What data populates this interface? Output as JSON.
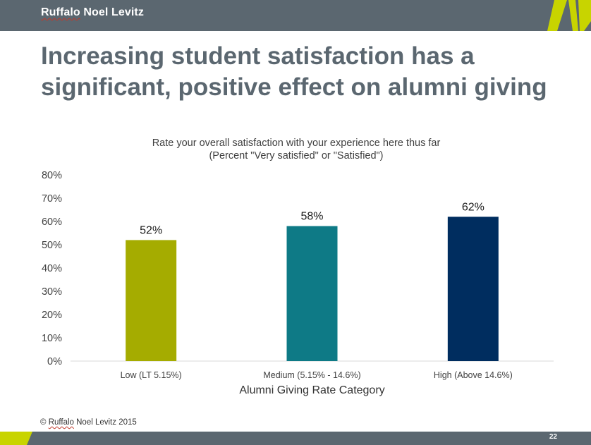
{
  "header": {
    "brand_first": "Ruffalo",
    "brand_rest": " Noel Levitz"
  },
  "slide": {
    "title": "Increasing student satisfaction has a significant, positive effect on alumni giving"
  },
  "chart_data": {
    "type": "bar",
    "title_line1": "Rate your overall satisfaction with your experience here thus far",
    "title_line2": "(Percent \"Very satisfied\" or \"Satisfied\")",
    "xlabel": "Alumni Giving Rate Category",
    "ylabel": "",
    "categories": [
      "Low (LT 5.15%)",
      "Medium (5.15% - 14.6%)",
      "High (Above 14.6%)"
    ],
    "values": [
      52,
      58,
      62
    ],
    "data_labels": [
      "52%",
      "58%",
      "62%"
    ],
    "colors": [
      "#a5ac00",
      "#0e7a86",
      "#002d5f"
    ],
    "ylim": [
      0,
      80
    ],
    "yticks": [
      0,
      10,
      20,
      30,
      40,
      50,
      60,
      70,
      80
    ],
    "ytick_labels": [
      "0%",
      "10%",
      "20%",
      "30%",
      "40%",
      "50%",
      "60%",
      "70%",
      "80%"
    ],
    "grid": false,
    "legend": "none"
  },
  "footer": {
    "copyright_symbol": "©",
    "brand_first": "Ruffalo",
    "brand_rest": " Noel Levitz 2015",
    "page_number": "22"
  },
  "colors": {
    "bar_dark_gray": "#5b6770",
    "accent_lime": "#c8d400",
    "title_gray": "#5b6770"
  }
}
